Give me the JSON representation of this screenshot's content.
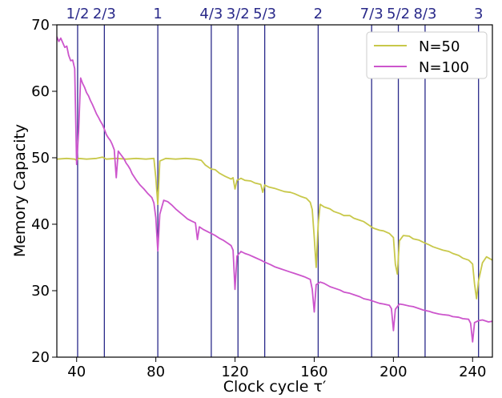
{
  "chart_data": {
    "type": "line",
    "title": "",
    "xlabel": "Clock cycle τ′",
    "ylabel": "Memory Capacity",
    "xlim": [
      30,
      250
    ],
    "ylim": [
      20,
      70
    ],
    "xticks": [
      40,
      80,
      120,
      160,
      200,
      240
    ],
    "yticks": [
      20,
      30,
      40,
      50,
      60,
      70
    ],
    "grid": false,
    "legend_position": "top-right",
    "series": [
      {
        "name": "N=50",
        "color": "#c8c84a",
        "points": [
          [
            30,
            49.8
          ],
          [
            35,
            49.9
          ],
          [
            39,
            49.8
          ],
          [
            40,
            49.6
          ],
          [
            41,
            49.9
          ],
          [
            45,
            49.8
          ],
          [
            50,
            49.9
          ],
          [
            53,
            50.1
          ],
          [
            55,
            49.8
          ],
          [
            60,
            49.9
          ],
          [
            65,
            49.8
          ],
          [
            70,
            49.9
          ],
          [
            75,
            49.8
          ],
          [
            79,
            49.9
          ],
          [
            80,
            47
          ],
          [
            81,
            43
          ],
          [
            82,
            49.5
          ],
          [
            85,
            49.9
          ],
          [
            90,
            49.8
          ],
          [
            95,
            49.9
          ],
          [
            100,
            49.8
          ],
          [
            103,
            49.6
          ],
          [
            105,
            48.9
          ],
          [
            108,
            48.3
          ],
          [
            110,
            48.2
          ],
          [
            112,
            47.7
          ],
          [
            115,
            47.2
          ],
          [
            118,
            46.8
          ],
          [
            119,
            47
          ],
          [
            120,
            45.3
          ],
          [
            121,
            46.6
          ],
          [
            123,
            46.9
          ],
          [
            125,
            46.6
          ],
          [
            128,
            46.5
          ],
          [
            130,
            46.2
          ],
          [
            133,
            46
          ],
          [
            134,
            44.8
          ],
          [
            135,
            45.9
          ],
          [
            137,
            45.6
          ],
          [
            140,
            45.4
          ],
          [
            143,
            45.1
          ],
          [
            145,
            44.9
          ],
          [
            148,
            44.8
          ],
          [
            150,
            44.6
          ],
          [
            153,
            44.2
          ],
          [
            156,
            43.9
          ],
          [
            158,
            43.3
          ],
          [
            159,
            42.2
          ],
          [
            160,
            38
          ],
          [
            161,
            33.5
          ],
          [
            162,
            40
          ],
          [
            163,
            43
          ],
          [
            165,
            42.6
          ],
          [
            168,
            42.3
          ],
          [
            170,
            41.9
          ],
          [
            173,
            41.6
          ],
          [
            175,
            41.3
          ],
          [
            178,
            41.3
          ],
          [
            180,
            40.9
          ],
          [
            183,
            40.6
          ],
          [
            185,
            40.4
          ],
          [
            188,
            39.8
          ],
          [
            190,
            39.4
          ],
          [
            193,
            39.1
          ],
          [
            195,
            39
          ],
          [
            198,
            38.6
          ],
          [
            200,
            38
          ],
          [
            201,
            34
          ],
          [
            202,
            32.5
          ],
          [
            203,
            37.5
          ],
          [
            205,
            38.3
          ],
          [
            208,
            38.2
          ],
          [
            210,
            37.8
          ],
          [
            213,
            37.6
          ],
          [
            215,
            37.3
          ],
          [
            218,
            36.9
          ],
          [
            220,
            36.6
          ],
          [
            223,
            36.3
          ],
          [
            225,
            36.1
          ],
          [
            228,
            35.9
          ],
          [
            230,
            35.6
          ],
          [
            233,
            35.3
          ],
          [
            235,
            34.9
          ],
          [
            238,
            34.6
          ],
          [
            240,
            34
          ],
          [
            241,
            31
          ],
          [
            242,
            28.8
          ],
          [
            243,
            31.5
          ],
          [
            245,
            34.2
          ],
          [
            247,
            35.1
          ],
          [
            250,
            34.6
          ]
        ]
      },
      {
        "name": "N=100",
        "color": "#cc55cc",
        "points": [
          [
            30,
            68.2
          ],
          [
            31,
            67.5
          ],
          [
            32,
            68
          ],
          [
            33,
            67.3
          ],
          [
            34,
            66.6
          ],
          [
            35,
            66.8
          ],
          [
            36,
            65.4
          ],
          [
            37,
            64.6
          ],
          [
            38,
            64.7
          ],
          [
            39,
            63.4
          ],
          [
            40,
            49
          ],
          [
            41,
            54
          ],
          [
            42,
            62
          ],
          [
            43,
            61.2
          ],
          [
            44,
            60.6
          ],
          [
            45,
            59.8
          ],
          [
            46,
            59.3
          ],
          [
            47,
            58.6
          ],
          [
            48,
            58
          ],
          [
            49,
            57.3
          ],
          [
            50,
            56.6
          ],
          [
            51,
            56.1
          ],
          [
            52,
            55.5
          ],
          [
            53,
            55
          ],
          [
            54,
            54.3
          ],
          [
            55,
            53.5
          ],
          [
            56,
            53
          ],
          [
            57,
            52.6
          ],
          [
            58,
            52
          ],
          [
            59,
            51.2
          ],
          [
            60,
            47
          ],
          [
            61,
            51
          ],
          [
            62,
            50.6
          ],
          [
            63,
            50.2
          ],
          [
            64,
            49.8
          ],
          [
            65,
            49.2
          ],
          [
            66,
            48.8
          ],
          [
            67,
            48.3
          ],
          [
            68,
            47.6
          ],
          [
            70,
            46.7
          ],
          [
            72,
            45.9
          ],
          [
            74,
            45.3
          ],
          [
            76,
            44.6
          ],
          [
            78,
            44
          ],
          [
            79,
            43.2
          ],
          [
            80,
            41
          ],
          [
            81,
            36
          ],
          [
            82,
            41.5
          ],
          [
            84,
            43.6
          ],
          [
            86,
            43.4
          ],
          [
            88,
            42.9
          ],
          [
            90,
            42.3
          ],
          [
            92,
            41.8
          ],
          [
            94,
            41.3
          ],
          [
            96,
            40.8
          ],
          [
            98,
            40.5
          ],
          [
            100,
            40.2
          ],
          [
            101,
            37.7
          ],
          [
            102,
            39.6
          ],
          [
            104,
            39.2
          ],
          [
            106,
            38.9
          ],
          [
            108,
            38.6
          ],
          [
            110,
            38.3
          ],
          [
            112,
            37.9
          ],
          [
            114,
            37.6
          ],
          [
            116,
            37.2
          ],
          [
            118,
            36.8
          ],
          [
            119,
            36.1
          ],
          [
            120,
            30.2
          ],
          [
            121,
            35.2
          ],
          [
            123,
            35.9
          ],
          [
            125,
            35.6
          ],
          [
            127,
            35.4
          ],
          [
            130,
            35
          ],
          [
            133,
            34.6
          ],
          [
            135,
            34.3
          ],
          [
            138,
            33.9
          ],
          [
            140,
            33.6
          ],
          [
            143,
            33.3
          ],
          [
            145,
            33.1
          ],
          [
            148,
            32.8
          ],
          [
            150,
            32.6
          ],
          [
            153,
            32.3
          ],
          [
            155,
            32.1
          ],
          [
            158,
            31.7
          ],
          [
            159,
            30.2
          ],
          [
            160,
            26.8
          ],
          [
            161,
            30.9
          ],
          [
            163,
            31.3
          ],
          [
            165,
            31.1
          ],
          [
            168,
            30.6
          ],
          [
            170,
            30.4
          ],
          [
            173,
            30.1
          ],
          [
            175,
            29.8
          ],
          [
            178,
            29.6
          ],
          [
            180,
            29.4
          ],
          [
            183,
            29.1
          ],
          [
            185,
            28.8
          ],
          [
            188,
            28.6
          ],
          [
            190,
            28.4
          ],
          [
            193,
            28.1
          ],
          [
            195,
            28
          ],
          [
            198,
            27.8
          ],
          [
            199,
            27.3
          ],
          [
            200,
            24
          ],
          [
            201,
            27.2
          ],
          [
            203,
            28
          ],
          [
            205,
            27.9
          ],
          [
            208,
            27.7
          ],
          [
            210,
            27.6
          ],
          [
            213,
            27.3
          ],
          [
            215,
            27.1
          ],
          [
            218,
            26.9
          ],
          [
            220,
            26.7
          ],
          [
            223,
            26.5
          ],
          [
            225,
            26.4
          ],
          [
            228,
            26.3
          ],
          [
            230,
            26.1
          ],
          [
            233,
            26
          ],
          [
            235,
            25.8
          ],
          [
            238,
            25.7
          ],
          [
            239,
            25.1
          ],
          [
            240,
            22.3
          ],
          [
            241,
            25.2
          ],
          [
            243,
            25.5
          ],
          [
            245,
            25.6
          ],
          [
            248,
            25.3
          ],
          [
            250,
            25.4
          ]
        ]
      }
    ],
    "resonance_lines": {
      "color": "#2a2a8a",
      "items": [
        {
          "label": "1/2",
          "x": 40.5
        },
        {
          "label": "2/3",
          "x": 54
        },
        {
          "label": "1",
          "x": 81
        },
        {
          "label": "4/3",
          "x": 108
        },
        {
          "label": "3/2",
          "x": 121.5
        },
        {
          "label": "5/3",
          "x": 135
        },
        {
          "label": "2",
          "x": 162
        },
        {
          "label": "7/3",
          "x": 189
        },
        {
          "label": "5/2",
          "x": 202.5
        },
        {
          "label": "8/3",
          "x": 216
        },
        {
          "label": "3",
          "x": 243
        }
      ]
    }
  }
}
